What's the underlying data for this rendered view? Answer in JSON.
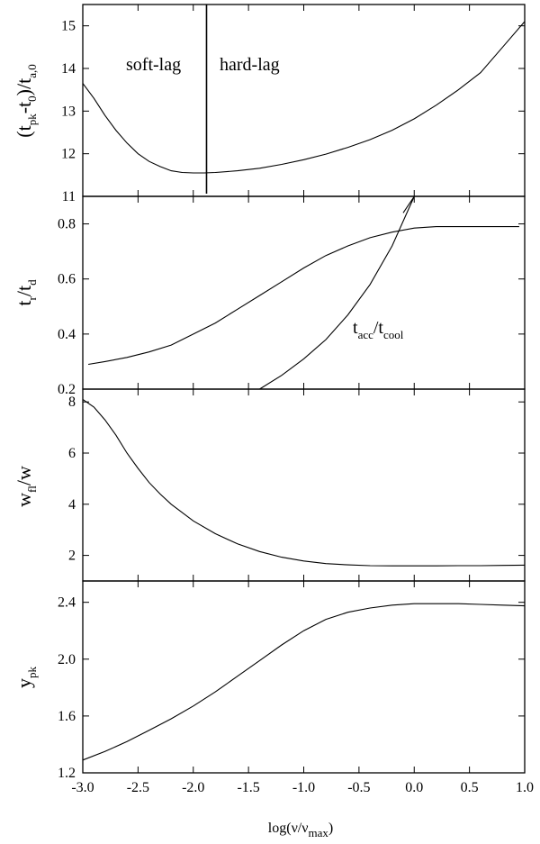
{
  "chart_data": [
    {
      "type": "line",
      "panel": "top",
      "ylabel": "(t_pk - t_0)/t_a,0",
      "ylim": [
        11,
        15.5
      ],
      "yticks": [
        11,
        12,
        13,
        14,
        15
      ],
      "annotations": [
        "soft-lag",
        "hard-lag"
      ],
      "vline_x": -1.88,
      "series": [
        {
          "x": [
            -3.0,
            -2.9,
            -2.8,
            -2.7,
            -2.6,
            -2.5,
            -2.4,
            -2.3,
            -2.2,
            -2.1,
            -2.0,
            -1.9,
            -1.8,
            -1.6,
            -1.4,
            -1.2,
            -1.0,
            -0.8,
            -0.6,
            -0.4,
            -0.2,
            0.0,
            0.2,
            0.4,
            0.6,
            0.8,
            1.0
          ],
          "y": [
            13.65,
            13.3,
            12.9,
            12.55,
            12.25,
            12.0,
            11.82,
            11.7,
            11.6,
            11.56,
            11.55,
            11.55,
            11.56,
            11.6,
            11.66,
            11.75,
            11.86,
            11.99,
            12.15,
            12.33,
            12.55,
            12.82,
            13.14,
            13.5,
            13.9,
            14.5,
            15.1
          ]
        }
      ]
    },
    {
      "type": "line",
      "panel": "second",
      "ylabel": "t_r/t_d",
      "ylim": [
        0.2,
        0.9
      ],
      "yticks": [
        0.2,
        0.4,
        0.6,
        0.8
      ],
      "annotations": [
        "t_acc/t_cool"
      ],
      "series": [
        {
          "x": [
            -2.95,
            -2.8,
            -2.6,
            -2.4,
            -2.2,
            -2.0,
            -1.8,
            -1.6,
            -1.4,
            -1.2,
            -1.0,
            -0.8,
            -0.6,
            -0.4,
            -0.2,
            0.0,
            0.2,
            0.4,
            0.6,
            0.8,
            0.95
          ],
          "y": [
            0.29,
            0.3,
            0.315,
            0.335,
            0.36,
            0.4,
            0.44,
            0.49,
            0.54,
            0.59,
            0.64,
            0.685,
            0.72,
            0.75,
            0.77,
            0.785,
            0.79,
            0.79,
            0.79,
            0.79,
            0.79
          ]
        },
        {
          "x": [
            -1.4,
            -1.2,
            -1.0,
            -0.8,
            -0.6,
            -0.4,
            -0.2,
            0.0,
            -0.1
          ],
          "y": [
            0.2,
            0.25,
            0.31,
            0.38,
            0.47,
            0.58,
            0.72,
            0.9,
            0.84
          ]
        }
      ]
    },
    {
      "type": "line",
      "panel": "third",
      "ylabel": "w_fl/w",
      "ylim": [
        1.0,
        8.5
      ],
      "yticks": [
        2,
        4,
        6,
        8
      ],
      "series": [
        {
          "x": [
            -3.0,
            -2.9,
            -2.8,
            -2.7,
            -2.6,
            -2.5,
            -2.4,
            -2.3,
            -2.2,
            -2.0,
            -1.8,
            -1.6,
            -1.4,
            -1.2,
            -1.0,
            -0.8,
            -0.6,
            -0.4,
            -0.2,
            0.0,
            0.2,
            0.4,
            0.6,
            0.8,
            1.0
          ],
          "y": [
            8.1,
            7.8,
            7.3,
            6.7,
            6.0,
            5.4,
            4.85,
            4.4,
            4.0,
            3.35,
            2.85,
            2.45,
            2.15,
            1.93,
            1.78,
            1.68,
            1.63,
            1.6,
            1.59,
            1.59,
            1.59,
            1.6,
            1.6,
            1.61,
            1.62
          ]
        }
      ]
    },
    {
      "type": "line",
      "panel": "bottom",
      "ylabel": "y_pk",
      "xlabel": "log(ν/ν_max)",
      "ylim": [
        1.2,
        2.55
      ],
      "yticks": [
        1.2,
        1.6,
        2.0,
        2.4
      ],
      "xlim": [
        -3.0,
        1.0
      ],
      "xticks": [
        "-3.0",
        "-2.5",
        "-2.0",
        "-1.5",
        "-1.0",
        "-0.5",
        "0.0",
        "0.5",
        "1.0"
      ],
      "series": [
        {
          "x": [
            -3.0,
            -2.8,
            -2.6,
            -2.4,
            -2.2,
            -2.0,
            -1.8,
            -1.6,
            -1.4,
            -1.2,
            -1.0,
            -0.8,
            -0.6,
            -0.4,
            -0.2,
            0.0,
            0.2,
            0.4,
            0.6,
            0.8,
            1.0
          ],
          "y": [
            1.29,
            1.35,
            1.42,
            1.5,
            1.58,
            1.67,
            1.77,
            1.88,
            1.99,
            2.1,
            2.2,
            2.28,
            2.33,
            2.36,
            2.38,
            2.39,
            2.39,
            2.39,
            2.385,
            2.38,
            2.375
          ]
        }
      ]
    }
  ]
}
